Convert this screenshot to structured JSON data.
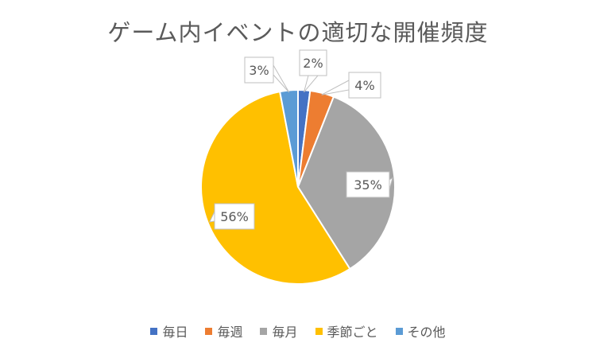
{
  "chart_data": {
    "type": "pie",
    "title": "ゲーム内イベントの適切な開催頻度",
    "categories": [
      "毎日",
      "毎週",
      "毎月",
      "季節ごと",
      "その他"
    ],
    "values": [
      2,
      4,
      35,
      56,
      3
    ],
    "labels": [
      "2%",
      "4%",
      "35%",
      "56%",
      "3%"
    ],
    "colors": [
      "#4472C4",
      "#ED7D31",
      "#A5A5A5",
      "#FFC000",
      "#5B9BD5"
    ],
    "legend_position": "bottom",
    "data_labels": "outside-callout"
  }
}
